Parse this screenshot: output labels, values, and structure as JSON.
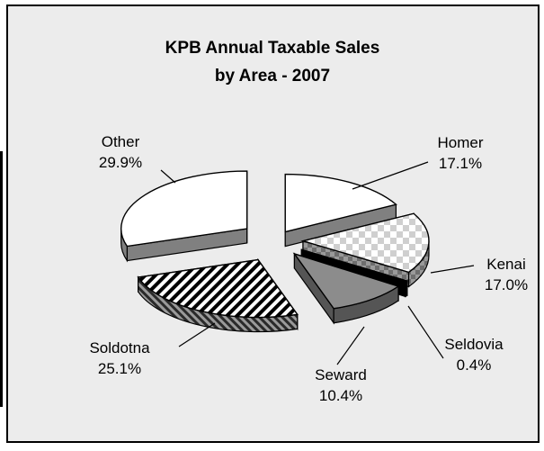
{
  "chart_data": {
    "type": "pie",
    "title_lines": [
      "KPB Annual Taxable Sales",
      "by Area - 2007"
    ],
    "slices": [
      {
        "label": "Homer",
        "value": 17.1,
        "value_text": "17.1%",
        "fill": "white"
      },
      {
        "label": "Kenai",
        "value": 17.0,
        "value_text": "17.0%",
        "fill": "checker"
      },
      {
        "label": "Seldovia",
        "value": 0.4,
        "value_text": "0.4%",
        "fill": "black"
      },
      {
        "label": "Seward",
        "value": 10.4,
        "value_text": "10.4%",
        "fill": "gray"
      },
      {
        "label": "Soldotna",
        "value": 25.1,
        "value_text": "25.1%",
        "fill": "diagonal-hatch"
      },
      {
        "label": "Other",
        "value": 29.9,
        "value_text": "29.9%",
        "fill": "white"
      }
    ],
    "exploded": true,
    "three_d": true,
    "colors": {
      "background": "#ececec",
      "frame": "#000000",
      "seward": "#8c8c8c",
      "sides": "#808080"
    }
  }
}
